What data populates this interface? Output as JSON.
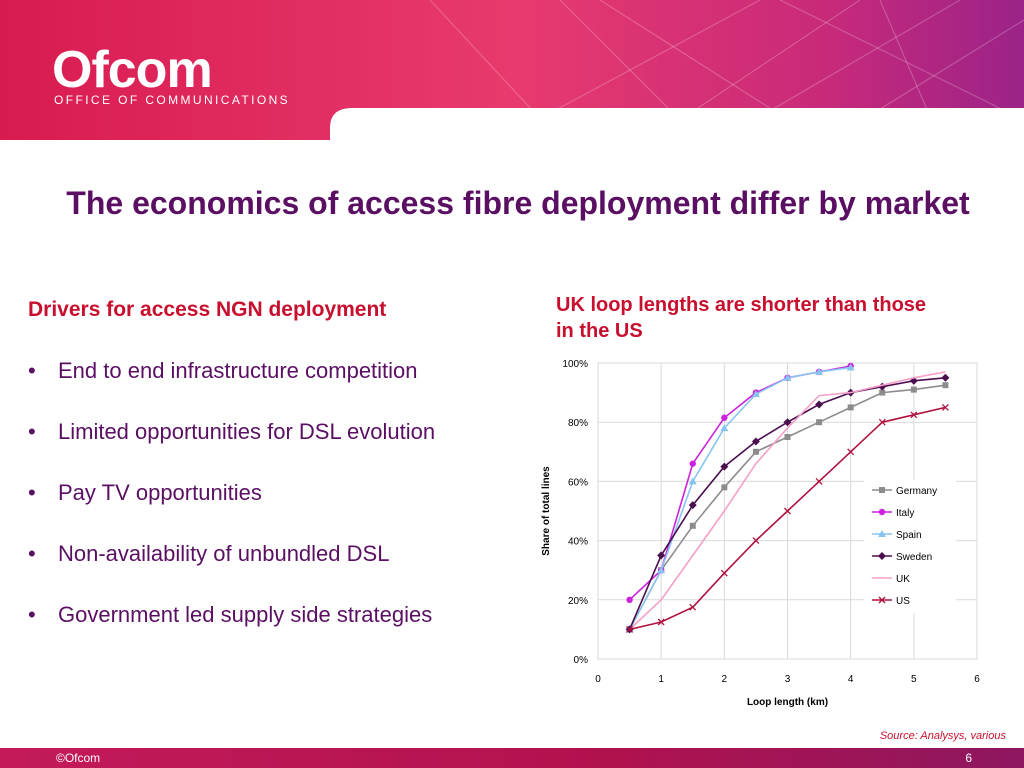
{
  "header": {
    "logo_text": "Ofcom",
    "logo_subtitle": "OFFICE OF COMMUNICATIONS"
  },
  "title": "The economics of access fibre deployment differ by market",
  "left": {
    "heading": "Drivers for access NGN deployment",
    "bullets": [
      "End to end infrastructure competition",
      "Limited opportunities for DSL evolution",
      "Pay TV opportunities",
      "Non-availability of unbundled DSL",
      "Government led supply side strategies"
    ]
  },
  "chart_heading": "UK loop lengths are shorter than those in the US",
  "chart_data": {
    "type": "line",
    "xlabel": "Loop length (km)",
    "ylabel": "Share of total lines",
    "xlim": [
      0,
      6
    ],
    "ylim": [
      0,
      100
    ],
    "x_ticks": [
      "0",
      "1",
      "2",
      "3",
      "4",
      "5",
      "6"
    ],
    "y_ticks": [
      "0%",
      "20%",
      "40%",
      "60%",
      "80%",
      "100%"
    ],
    "grid": true,
    "legend_position": "right",
    "series": [
      {
        "name": "Germany",
        "color": "#8c8c8c",
        "marker": "square",
        "x": [
          0.5,
          1,
          1.5,
          2,
          2.5,
          3,
          3.5,
          4,
          4.5,
          5,
          5.5
        ],
        "y": [
          10,
          30,
          45,
          58,
          70,
          75,
          80,
          85,
          90,
          91,
          92.5
        ]
      },
      {
        "name": "Italy",
        "color": "#cc22dd",
        "marker": "circle",
        "x": [
          0.5,
          1,
          1.5,
          2,
          2.5,
          3,
          3.5,
          4
        ],
        "y": [
          20,
          30,
          66,
          81.5,
          90,
          95,
          97,
          99
        ]
      },
      {
        "name": "Spain",
        "color": "#88c4f0",
        "marker": "triangle",
        "x": [
          0.5,
          1,
          1.5,
          2,
          2.5,
          3,
          3.5,
          4
        ],
        "y": [
          10,
          30,
          60,
          78,
          89.5,
          95,
          97,
          98.5
        ]
      },
      {
        "name": "Sweden",
        "color": "#4b0f4f",
        "marker": "diamond",
        "x": [
          0.5,
          1,
          1.5,
          2,
          2.5,
          3,
          3.5,
          4,
          4.5,
          5,
          5.5
        ],
        "y": [
          10,
          35,
          52,
          65,
          73.5,
          80,
          86,
          90,
          92,
          94,
          95
        ]
      },
      {
        "name": "UK",
        "color": "#f4a0c8",
        "marker": "none",
        "x": [
          0.5,
          1,
          1.5,
          2,
          2.5,
          3,
          3.5,
          4,
          4.5,
          5,
          5.5
        ],
        "y": [
          10,
          20,
          35,
          50,
          66,
          78,
          89,
          90,
          92.5,
          95,
          97
        ]
      },
      {
        "name": "US",
        "color": "#b0123e",
        "marker": "x",
        "x": [
          0.5,
          1,
          1.5,
          2,
          2.5,
          3,
          3.5,
          4,
          4.5,
          5,
          5.5
        ],
        "y": [
          10,
          12.5,
          17.5,
          29,
          40,
          50,
          60,
          70,
          80,
          82.5,
          85
        ]
      }
    ]
  },
  "source": "Source: Analysys, various",
  "footer": {
    "copyright": "©Ofcom",
    "page_number": "6"
  },
  "colors": {
    "title": "#5a0f63",
    "accent_red": "#c8102e",
    "header_pink": "#e0245e"
  }
}
